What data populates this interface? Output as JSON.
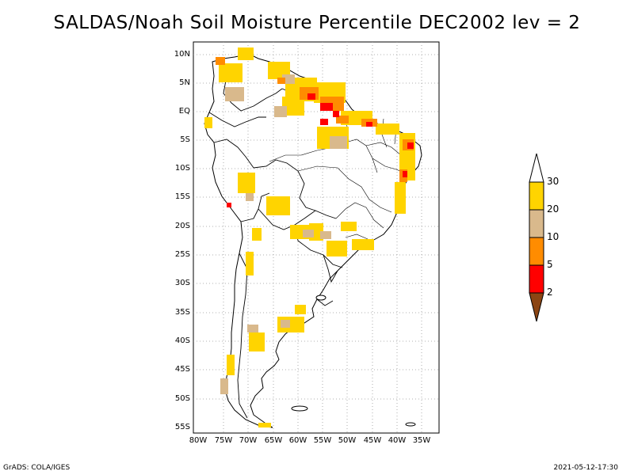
{
  "title": "SALDAS/Noah Soil Moisture Percentile DEC2002 lev = 2",
  "lat_labels": [
    "10N",
    "5N",
    "EQ",
    "5S",
    "10S",
    "15S",
    "20S",
    "25S",
    "30S",
    "35S",
    "40S",
    "45S",
    "50S",
    "55S"
  ],
  "lon_labels": [
    "80W",
    "75W",
    "70W",
    "65W",
    "60W",
    "55W",
    "50W",
    "45W",
    "40W",
    "35W"
  ],
  "colorbar": {
    "levels": [
      "30",
      "20",
      "10",
      "5",
      "2"
    ],
    "colors": {
      "above_30": "#ffffff",
      "20_30": "#ffd400",
      "10_20": "#d9b98c",
      "5_10": "#ff8c00",
      "2_5": "#ff0000",
      "below_2": "#8b4513"
    }
  },
  "footer": {
    "left": "GrADS: COLA/IGES",
    "right": "2021-05-12-17:30"
  }
}
